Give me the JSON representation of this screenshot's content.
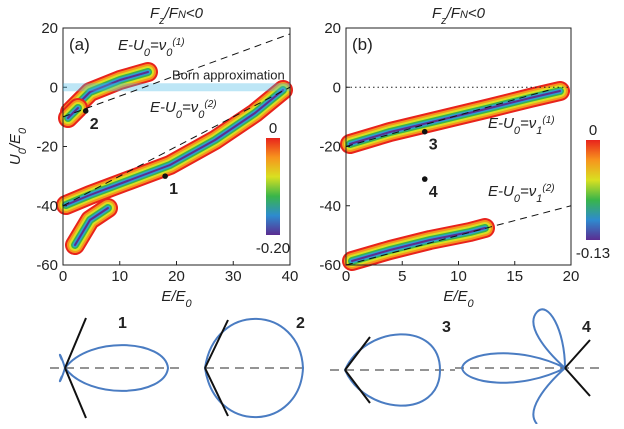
{
  "chart_data": [
    {
      "type": "line",
      "panel_label": "(a)",
      "title": [
        "F",
        "z",
        "/F",
        "N",
        "<0"
      ],
      "ylabel": [
        "U",
        "0",
        "/E",
        "0"
      ],
      "xlabel": [
        "E/E",
        "0"
      ],
      "xlim": [
        0,
        40
      ],
      "ylim": [
        -60,
        20
      ],
      "xticks": [
        0,
        10,
        20,
        30,
        40
      ],
      "yticks": [
        20,
        0,
        -20,
        -40,
        -60
      ],
      "lines": [
        {
          "x": [
            0,
            40
          ],
          "y": [
            -10,
            18
          ],
          "label": [
            "E-U",
            "0",
            "=ν",
            "0",
            "(1)"
          ]
        },
        {
          "x": [
            0,
            40
          ],
          "y": [
            -40,
            0
          ],
          "label": [
            "E-U",
            "0",
            "=ν",
            "0",
            "(2)"
          ]
        }
      ],
      "band": {
        "value": 0,
        "label": "Born approximation",
        "color": "#41b6e6"
      },
      "points": {
        "x": [
          18,
          4
        ],
        "y": [
          -30,
          -8
        ],
        "labels": [
          "1",
          "2"
        ]
      },
      "colorbar": {
        "clim": [
          -0.2,
          0
        ],
        "ticks": [
          0,
          {
            "value": -0.2,
            "label": "-0.20"
          }
        ]
      }
    },
    {
      "type": "line",
      "panel_label": "(b)",
      "title": [
        "F",
        "z",
        "/F",
        "N",
        "<0"
      ],
      "xlabel": [
        "E/E",
        "0"
      ],
      "xlim": [
        0,
        20
      ],
      "ylim": [
        -60,
        20
      ],
      "xticks": [
        0,
        5,
        10,
        15,
        20
      ],
      "yticks": [
        20,
        0,
        -20,
        -40,
        -60
      ],
      "lines": [
        {
          "x": [
            0,
            18
          ],
          "y": [
            -20,
            -1
          ],
          "label": [
            "E-U",
            "0",
            "=ν",
            "1",
            "(1)"
          ]
        },
        {
          "x": [
            0,
            20
          ],
          "y": [
            -60,
            -40
          ],
          "label": [
            "E-U",
            "0",
            "=ν",
            "1",
            "(2)"
          ]
        }
      ],
      "hline": 0,
      "points": {
        "x": [
          7,
          7
        ],
        "y": [
          -15,
          -31
        ],
        "labels": [
          "3",
          "4"
        ]
      },
      "colorbar": {
        "clim": [
          -0.13,
          0
        ],
        "ticks": [
          0,
          -0.13
        ]
      }
    }
  ],
  "diagrams": [
    "1",
    "2",
    "3",
    "4"
  ]
}
